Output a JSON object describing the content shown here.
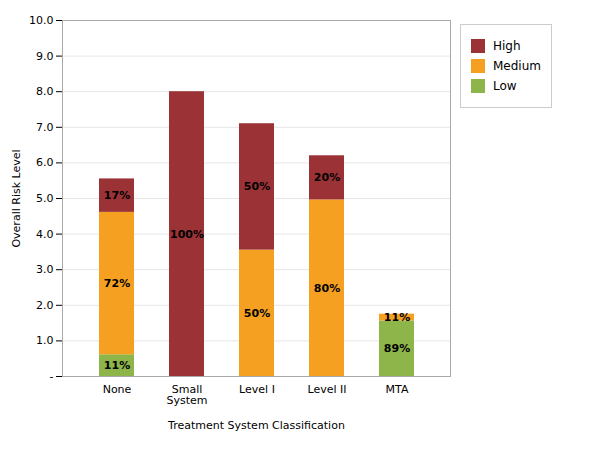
{
  "chart_data": {
    "type": "bar",
    "stacked": true,
    "categories": [
      "None",
      "Small\nSystem",
      "Level I",
      "Level II",
      "MTA"
    ],
    "xlabel": "Treatment System Classification",
    "ylabel": "Overall Risk Level",
    "series": [
      {
        "name": "Low",
        "color": "#8db54a",
        "values": [
          0.61,
          0.0,
          0.0,
          0.0,
          1.56
        ],
        "share_labels": [
          "11%",
          null,
          null,
          null,
          "89%"
        ]
      },
      {
        "name": "Medium",
        "color": "#f5a020",
        "values": [
          4.0,
          0.0,
          3.55,
          4.96,
          0.19
        ],
        "share_labels": [
          "72%",
          null,
          "50%",
          "80%",
          "11%"
        ]
      },
      {
        "name": "High",
        "color": "#9b3336",
        "values": [
          0.94,
          8.0,
          3.55,
          1.24,
          0.0
        ],
        "share_labels": [
          "17%",
          "100%",
          "50%",
          "20%",
          null
        ]
      }
    ],
    "ylim": [
      0,
      10.0
    ],
    "yticks": [
      {
        "value": 0,
        "label": "-"
      },
      {
        "value": 1,
        "label": "1.0"
      },
      {
        "value": 2,
        "label": "2.0"
      },
      {
        "value": 3,
        "label": "3.0"
      },
      {
        "value": 4,
        "label": "4.0"
      },
      {
        "value": 5,
        "label": "5.0"
      },
      {
        "value": 6,
        "label": "6.0"
      },
      {
        "value": 7,
        "label": "7.0"
      },
      {
        "value": 8,
        "label": "8.0"
      },
      {
        "value": 9,
        "label": "9.0"
      },
      {
        "value": 10,
        "label": "10.0"
      }
    ],
    "grid": true,
    "legend": "right"
  }
}
